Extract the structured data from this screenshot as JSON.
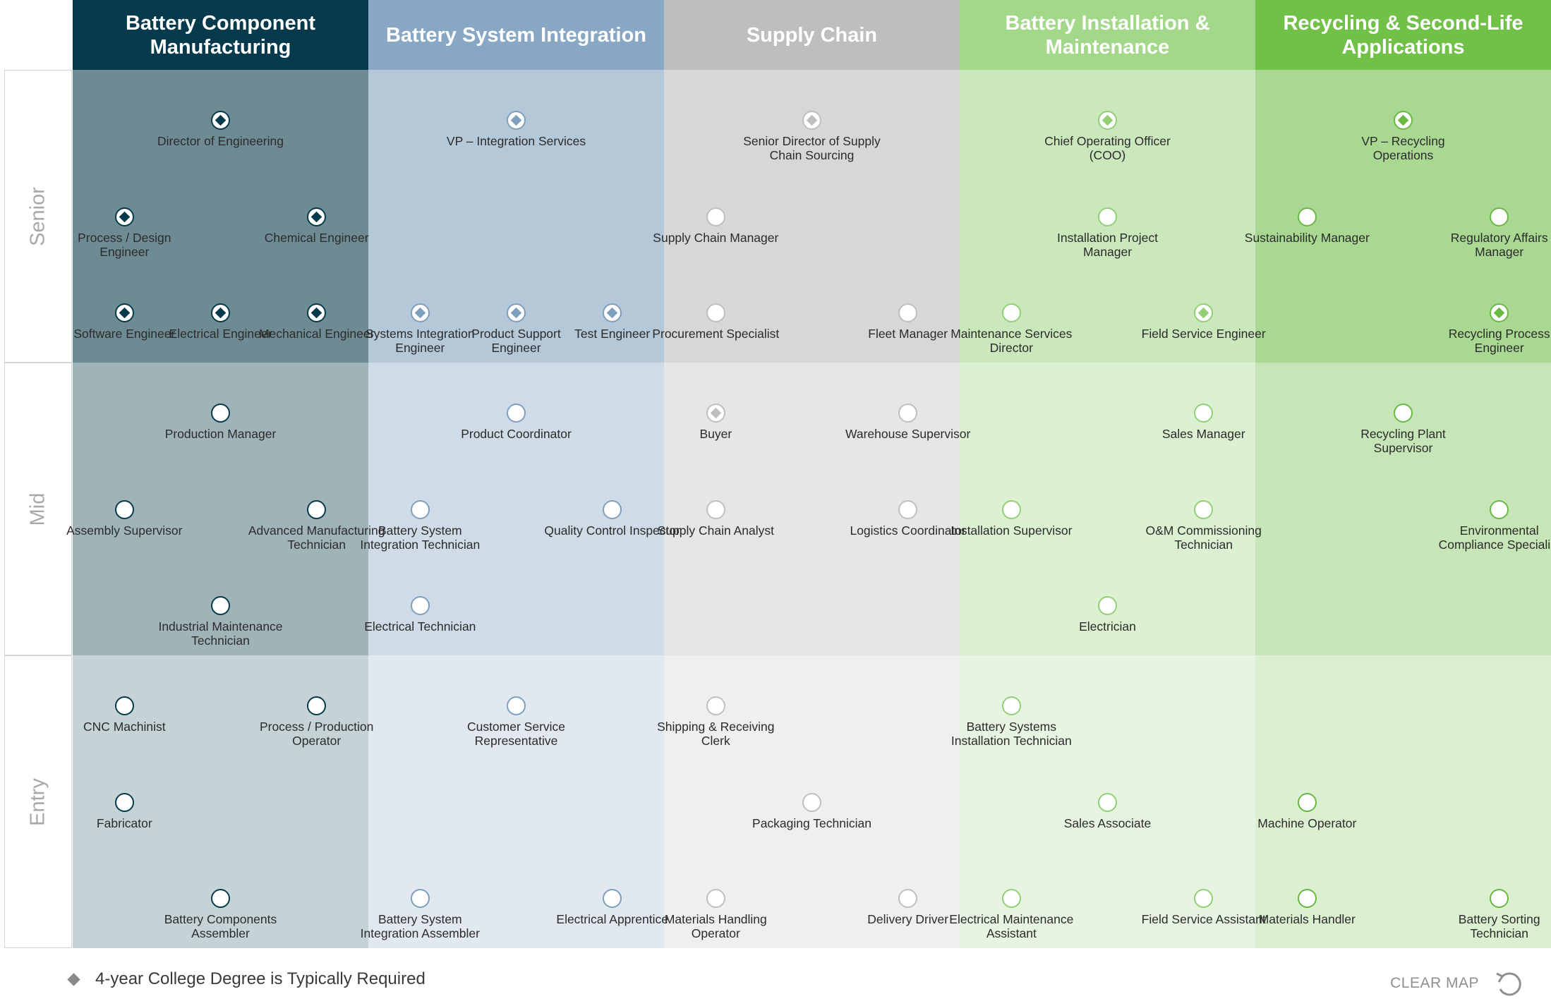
{
  "columns": [
    {
      "id": "mfg",
      "title": "Battery Component Manufacturing",
      "header_color": "#053a4d",
      "cell_colors": [
        "#6e8b93",
        "#a0b3b8",
        "#c5d3d7"
      ],
      "node_color": "#053a4d"
    },
    {
      "id": "int",
      "title": "Battery System Integration",
      "header_color": "#87a7c4",
      "cell_colors": [
        "#b4c8d8",
        "#cfdbe6",
        "#e1e8ef"
      ],
      "node_color": "#7e9fbd"
    },
    {
      "id": "sup",
      "title": "Supply Chain",
      "header_color": "#bfbebe",
      "cell_colors": [
        "#d7d7d7",
        "#e6e6e6",
        "#efefef"
      ],
      "node_color": "#bfbfbf"
    },
    {
      "id": "ins",
      "title": "Battery Installation & Maintenance",
      "header_color": "#a3d88a",
      "cell_colors": [
        "#cbe8bd",
        "#dcf0d2",
        "#e8f4e2"
      ],
      "node_color": "#93cf77"
    },
    {
      "id": "rec",
      "title": "Recycling & Second-Life Applications",
      "header_color": "#71c047",
      "cell_colors": [
        "#a9d892",
        "#c7e6b8",
        "#dbefd1"
      ],
      "node_color": "#69b943"
    }
  ],
  "rows": [
    {
      "id": "senior",
      "label": "Senior"
    },
    {
      "id": "mid",
      "label": "Mid"
    },
    {
      "id": "entry",
      "label": "Entry"
    }
  ],
  "jobs": [
    {
      "col": 0,
      "row": 0,
      "pos": "t1",
      "title": "Director of Engineering",
      "degree": true
    },
    {
      "col": 0,
      "row": 0,
      "pos": "m0",
      "title": "Process / Design Engineer",
      "degree": true
    },
    {
      "col": 0,
      "row": 0,
      "pos": "m2",
      "title": "Chemical Engineer",
      "degree": true
    },
    {
      "col": 0,
      "row": 0,
      "pos": "b0",
      "title": "Software Engineer",
      "degree": true
    },
    {
      "col": 0,
      "row": 0,
      "pos": "b1",
      "title": "Electrical Engineer",
      "degree": true
    },
    {
      "col": 0,
      "row": 0,
      "pos": "b2",
      "title": "Mechanical Engineer",
      "degree": true
    },
    {
      "col": 0,
      "row": 1,
      "pos": "t1",
      "title": "Production Manager",
      "degree": false
    },
    {
      "col": 0,
      "row": 1,
      "pos": "m0",
      "title": "Assembly Supervisor",
      "degree": false
    },
    {
      "col": 0,
      "row": 1,
      "pos": "m2",
      "title": "Advanced Manufacturing Technician",
      "degree": false
    },
    {
      "col": 0,
      "row": 1,
      "pos": "b1",
      "title": "Industrial Maintenance Technician",
      "degree": false
    },
    {
      "col": 0,
      "row": 2,
      "pos": "t0",
      "title": "CNC Machinist",
      "degree": false
    },
    {
      "col": 0,
      "row": 2,
      "pos": "t2",
      "title": "Process / Production Operator",
      "degree": false
    },
    {
      "col": 0,
      "row": 2,
      "pos": "m0",
      "title": "Fabricator",
      "degree": false
    },
    {
      "col": 0,
      "row": 2,
      "pos": "b1",
      "title": "Battery Components Assembler",
      "degree": false
    },
    {
      "col": 1,
      "row": 0,
      "pos": "t1",
      "title": "VP – Integration Services",
      "degree": true
    },
    {
      "col": 1,
      "row": 0,
      "pos": "b0",
      "title": "Systems Integration Engineer",
      "degree": true
    },
    {
      "col": 1,
      "row": 0,
      "pos": "b1",
      "title": "Product Support Engineer",
      "degree": true
    },
    {
      "col": 1,
      "row": 0,
      "pos": "b2",
      "title": "Test Engineer",
      "degree": true
    },
    {
      "col": 1,
      "row": 1,
      "pos": "t1",
      "title": "Product Coordinator",
      "degree": false
    },
    {
      "col": 1,
      "row": 1,
      "pos": "m0",
      "title": "Battery System Integration Technician",
      "degree": false
    },
    {
      "col": 1,
      "row": 1,
      "pos": "m2",
      "title": "Quality Control Inspector",
      "degree": false
    },
    {
      "col": 1,
      "row": 1,
      "pos": "b0",
      "title": "Electrical Technician",
      "degree": false
    },
    {
      "col": 1,
      "row": 2,
      "pos": "t1",
      "title": "Customer Service Representative",
      "degree": false
    },
    {
      "col": 1,
      "row": 2,
      "pos": "b0",
      "title": "Battery System Integration Assembler",
      "degree": false
    },
    {
      "col": 1,
      "row": 2,
      "pos": "b2",
      "title": "Electrical Apprentice",
      "degree": false
    },
    {
      "col": 2,
      "row": 0,
      "pos": "t1",
      "title": "Senior Director of Supply Chain Sourcing",
      "degree": true
    },
    {
      "col": 2,
      "row": 0,
      "pos": "m0",
      "title": "Supply Chain Manager",
      "degree": false
    },
    {
      "col": 2,
      "row": 0,
      "pos": "b0",
      "title": "Procurement Specialist",
      "degree": false
    },
    {
      "col": 2,
      "row": 0,
      "pos": "b2",
      "title": "Fleet Manager",
      "degree": false
    },
    {
      "col": 2,
      "row": 1,
      "pos": "t0",
      "title": "Buyer",
      "degree": true
    },
    {
      "col": 2,
      "row": 1,
      "pos": "t2",
      "title": "Warehouse Supervisor",
      "degree": false
    },
    {
      "col": 2,
      "row": 1,
      "pos": "m0",
      "title": "Supply Chain Analyst",
      "degree": false
    },
    {
      "col": 2,
      "row": 1,
      "pos": "m2",
      "title": "Logistics Coordinator",
      "degree": false
    },
    {
      "col": 2,
      "row": 2,
      "pos": "t0",
      "title": "Shipping & Receiving Clerk",
      "degree": false
    },
    {
      "col": 2,
      "row": 2,
      "pos": "m1",
      "title": "Packaging Technician",
      "degree": false
    },
    {
      "col": 2,
      "row": 2,
      "pos": "b0",
      "title": "Materials Handling Operator",
      "degree": false
    },
    {
      "col": 2,
      "row": 2,
      "pos": "b2",
      "title": "Delivery Driver",
      "degree": false
    },
    {
      "col": 3,
      "row": 0,
      "pos": "t1",
      "title": "Chief Operating Officer (COO)",
      "degree": true
    },
    {
      "col": 3,
      "row": 0,
      "pos": "m1",
      "title": "Installation Project Manager",
      "degree": false
    },
    {
      "col": 3,
      "row": 0,
      "pos": "b0",
      "title": "Maintenance Services Director",
      "degree": false
    },
    {
      "col": 3,
      "row": 0,
      "pos": "b2",
      "title": "Field Service Engineer",
      "degree": true
    },
    {
      "col": 3,
      "row": 1,
      "pos": "t2",
      "title": "Sales Manager",
      "degree": false
    },
    {
      "col": 3,
      "row": 1,
      "pos": "m0",
      "title": "Installation Supervisor",
      "degree": false
    },
    {
      "col": 3,
      "row": 1,
      "pos": "m2",
      "title": "O&M Commissioning Technician",
      "degree": false
    },
    {
      "col": 3,
      "row": 1,
      "pos": "b1",
      "title": "Electrician",
      "degree": false
    },
    {
      "col": 3,
      "row": 2,
      "pos": "t0",
      "title": "Battery Systems Installation Technician",
      "degree": false
    },
    {
      "col": 3,
      "row": 2,
      "pos": "m1",
      "title": "Sales Associate",
      "degree": false
    },
    {
      "col": 3,
      "row": 2,
      "pos": "b0",
      "title": "Electrical Maintenance Assistant",
      "degree": false
    },
    {
      "col": 3,
      "row": 2,
      "pos": "b2",
      "title": "Field Service Assistant",
      "degree": false
    },
    {
      "col": 4,
      "row": 0,
      "pos": "t1",
      "title": "VP – Recycling Operations",
      "degree": true
    },
    {
      "col": 4,
      "row": 0,
      "pos": "m0",
      "title": "Sustainability Manager",
      "degree": false
    },
    {
      "col": 4,
      "row": 0,
      "pos": "m2",
      "title": "Regulatory Affairs Manager",
      "degree": false
    },
    {
      "col": 4,
      "row": 0,
      "pos": "b2",
      "title": "Recycling Process Engineer",
      "degree": true
    },
    {
      "col": 4,
      "row": 1,
      "pos": "t1",
      "title": "Recycling Plant Supervisor",
      "degree": false
    },
    {
      "col": 4,
      "row": 1,
      "pos": "m2",
      "title": "Environmental Compliance Specialist",
      "degree": false
    },
    {
      "col": 4,
      "row": 2,
      "pos": "m0",
      "title": "Machine Operator",
      "degree": false
    },
    {
      "col": 4,
      "row": 2,
      "pos": "b0",
      "title": "Materials Handler",
      "degree": false
    },
    {
      "col": 4,
      "row": 2,
      "pos": "b2",
      "title": "Battery Sorting Technician",
      "degree": false
    }
  ],
  "legend": {
    "text": "4-year College Degree is Typically Required",
    "icon": "diamond-icon"
  },
  "clear_map": {
    "label": "CLEAR MAP",
    "icon": "undo-icon"
  }
}
